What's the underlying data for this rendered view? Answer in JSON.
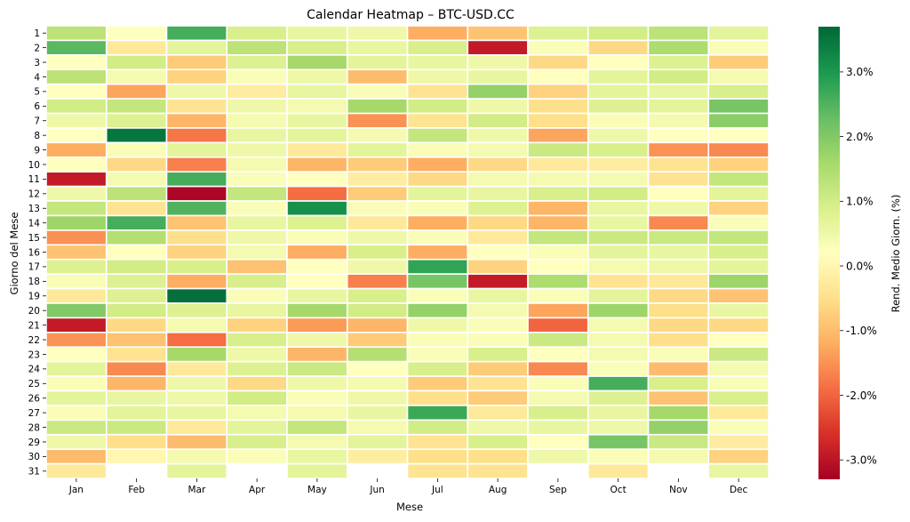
{
  "chart_data": {
    "type": "heatmap",
    "title": "Calendar Heatmap – BTC-USD.CC",
    "xlabel": "Mese",
    "ylabel": "Giorno del Mese",
    "x_categories": [
      "Jan",
      "Feb",
      "Mar",
      "Apr",
      "May",
      "Jun",
      "Jul",
      "Aug",
      "Sep",
      "Oct",
      "Nov",
      "Dec"
    ],
    "y_categories": [
      "1",
      "2",
      "3",
      "4",
      "5",
      "6",
      "7",
      "8",
      "9",
      "10",
      "11",
      "12",
      "13",
      "14",
      "15",
      "16",
      "17",
      "18",
      "19",
      "20",
      "21",
      "22",
      "23",
      "24",
      "25",
      "26",
      "27",
      "28",
      "29",
      "30",
      "31"
    ],
    "colorbar": {
      "label": "Rend. Medio Giorn. (%)",
      "range": [
        -3.3,
        3.7
      ],
      "ticks": [
        3.0,
        2.0,
        1.0,
        0.0,
        -1.0,
        -2.0,
        -3.0
      ],
      "tick_labels": [
        "3.0%",
        "2.0%",
        "1.0%",
        "0.0%",
        "-1.0%",
        "-2.0%",
        "-3.0%"
      ],
      "colormap": "RdYlGn",
      "colors": [
        "#a50026",
        "#d73027",
        "#f46d43",
        "#fdae61",
        "#fee08b",
        "#ffffbf",
        "#d9ef8b",
        "#a6d96a",
        "#66bd63",
        "#1a9850",
        "#006837"
      ]
    },
    "values_percent": [
      [
        1.3,
        0.2,
        2.6,
        0.9,
        0.6,
        0.5,
        -1.2,
        -0.9,
        0.8,
        1.0,
        1.3,
        0.7
      ],
      [
        2.4,
        -0.3,
        0.7,
        1.3,
        0.9,
        0.6,
        0.9,
        -2.9,
        0.3,
        -0.6,
        1.5,
        0.3
      ],
      [
        0.2,
        1.0,
        -0.8,
        0.8,
        1.6,
        0.7,
        0.6,
        0.5,
        -0.6,
        0.2,
        0.8,
        -0.8
      ],
      [
        1.3,
        0.4,
        -0.7,
        0.3,
        0.5,
        -1.0,
        0.5,
        0.6,
        0.2,
        0.7,
        1.0,
        0.4
      ],
      [
        0.2,
        -1.3,
        0.5,
        -0.2,
        0.6,
        0.3,
        -0.4,
        1.8,
        -0.7,
        0.7,
        0.6,
        0.9
      ],
      [
        1.0,
        1.2,
        -0.4,
        0.5,
        0.4,
        1.6,
        1.0,
        0.5,
        -0.5,
        0.8,
        0.7,
        2.1
      ],
      [
        0.5,
        0.8,
        -1.1,
        0.4,
        0.6,
        -1.5,
        -0.4,
        1.0,
        -0.5,
        0.3,
        0.4,
        1.9
      ],
      [
        0.2,
        3.5,
        -1.8,
        0.6,
        0.7,
        0.4,
        1.2,
        0.5,
        -1.3,
        0.5,
        0.2,
        0.2
      ],
      [
        -1.2,
        0.3,
        0.7,
        0.5,
        -0.3,
        0.7,
        0.3,
        0.4,
        1.1,
        0.9,
        -1.5,
        -1.6
      ],
      [
        0.2,
        -0.6,
        -1.7,
        0.4,
        -1.1,
        -0.8,
        -1.2,
        -0.6,
        -0.3,
        -0.2,
        -0.4,
        -0.7
      ],
      [
        -2.9,
        0.4,
        2.6,
        0.3,
        0.2,
        -0.2,
        -0.6,
        0.4,
        0.4,
        0.4,
        -0.4,
        1.2
      ],
      [
        0.5,
        1.3,
        -3.2,
        1.2,
        -1.9,
        -0.8,
        0.7,
        0.6,
        0.9,
        1.0,
        0.2,
        0.7
      ],
      [
        1.2,
        -0.4,
        2.5,
        0.3,
        3.1,
        0.3,
        0.3,
        0.8,
        -1.1,
        0.6,
        0.5,
        -0.7
      ],
      [
        1.7,
        2.6,
        -0.9,
        0.6,
        0.8,
        -0.3,
        -1.2,
        -0.6,
        -1.1,
        0.6,
        -1.6,
        0.3
      ],
      [
        -1.5,
        1.4,
        -0.5,
        0.5,
        0.3,
        0.5,
        0.3,
        -0.3,
        1.2,
        1.1,
        1.1,
        1.2
      ],
      [
        -0.9,
        0.2,
        -0.7,
        0.4,
        -1.2,
        0.9,
        -1.2,
        0.2,
        0.3,
        0.7,
        0.6,
        0.9
      ],
      [
        0.8,
        1.0,
        0.9,
        -0.9,
        0.2,
        0.5,
        2.8,
        -0.7,
        0.2,
        0.4,
        0.5,
        0.7
      ],
      [
        0.3,
        0.8,
        -1.2,
        0.9,
        0.2,
        -1.7,
        2.1,
        -2.9,
        1.5,
        -0.4,
        -0.3,
        1.7
      ],
      [
        -0.3,
        0.8,
        3.6,
        0.3,
        0.6,
        0.9,
        0.3,
        0.6,
        0.3,
        0.7,
        -0.6,
        -0.9
      ],
      [
        2.0,
        1.0,
        0.8,
        0.6,
        1.6,
        1.0,
        1.8,
        0.4,
        -1.3,
        1.7,
        -0.5,
        0.6
      ],
      [
        -2.9,
        -0.6,
        0.4,
        -0.7,
        -1.4,
        -1.1,
        0.5,
        0.3,
        -2.0,
        0.4,
        -0.6,
        -0.6
      ],
      [
        -1.5,
        -0.9,
        -1.9,
        0.9,
        0.5,
        -0.8,
        0.3,
        0.3,
        1.1,
        0.4,
        -0.5,
        0.2
      ],
      [
        0.2,
        -0.4,
        1.6,
        0.5,
        -1.1,
        1.4,
        0.3,
        0.9,
        0.2,
        0.4,
        0.3,
        1.1
      ],
      [
        0.7,
        -1.6,
        -0.3,
        0.8,
        1.1,
        0.2,
        0.9,
        -0.8,
        -1.6,
        0.3,
        -1.0,
        0.4
      ],
      [
        0.3,
        -1.1,
        0.5,
        -0.6,
        0.5,
        0.4,
        -0.8,
        -0.4,
        0.3,
        2.6,
        0.9,
        0.3
      ],
      [
        0.7,
        0.6,
        0.5,
        1.0,
        0.3,
        0.5,
        -0.5,
        -0.8,
        0.4,
        0.8,
        -0.9,
        0.9
      ],
      [
        0.3,
        0.7,
        0.6,
        0.4,
        0.4,
        0.6,
        2.7,
        -0.3,
        0.9,
        0.6,
        1.6,
        -0.3
      ],
      [
        1.1,
        1.1,
        -0.3,
        0.7,
        1.2,
        0.4,
        1.0,
        0.5,
        0.6,
        0.5,
        1.8,
        0.3
      ],
      [
        0.5,
        -0.5,
        -1.0,
        0.9,
        0.4,
        0.7,
        -0.4,
        0.9,
        0.2,
        2.1,
        1.1,
        -0.2
      ],
      [
        -1.0,
        0.0,
        0.4,
        0.3,
        0.6,
        -0.2,
        -0.5,
        -0.5,
        0.5,
        0.3,
        0.4,
        -0.7
      ],
      [
        -0.3,
        null,
        0.7,
        null,
        0.7,
        null,
        -0.4,
        -0.4,
        null,
        -0.3,
        null,
        0.6
      ]
    ]
  }
}
